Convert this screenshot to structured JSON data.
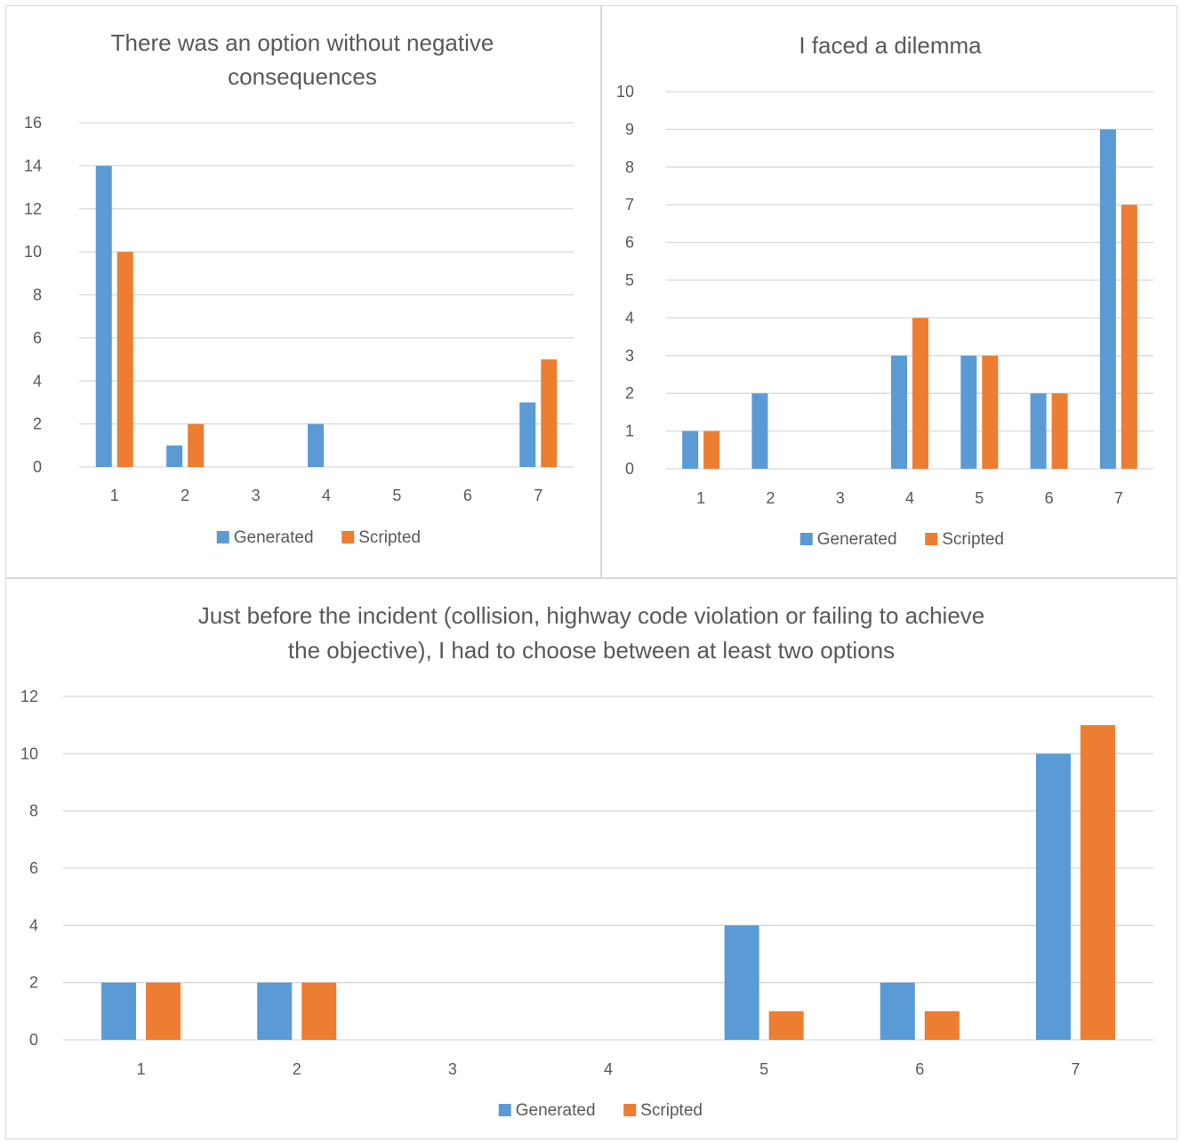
{
  "colors": {
    "generated": "#5b9bd5",
    "scripted": "#ed7d31",
    "grid": "#d9d9d9",
    "text": "#595959"
  },
  "chart_data": [
    {
      "type": "bar",
      "title": "There was an option without negative consequences",
      "title_lines": [
        "There was an option without negative",
        "consequences"
      ],
      "categories": [
        "1",
        "2",
        "3",
        "4",
        "5",
        "6",
        "7"
      ],
      "series": [
        {
          "name": "Generated",
          "values": [
            14,
            1,
            0,
            2,
            0,
            0,
            3
          ]
        },
        {
          "name": "Scripted",
          "values": [
            10,
            2,
            0,
            0,
            0,
            0,
            5
          ]
        }
      ],
      "ylim": [
        0,
        16
      ],
      "yticks": [
        "0",
        "2",
        "4",
        "6",
        "8",
        "10",
        "12",
        "14",
        "16"
      ],
      "grid": true,
      "legend": "bottom"
    },
    {
      "type": "bar",
      "title": "I faced a dilemma",
      "title_lines": [
        "I faced a dilemma"
      ],
      "categories": [
        "1",
        "2",
        "3",
        "4",
        "5",
        "6",
        "7"
      ],
      "series": [
        {
          "name": "Generated",
          "values": [
            1,
            2,
            0,
            3,
            3,
            2,
            9
          ]
        },
        {
          "name": "Scripted",
          "values": [
            1,
            0,
            0,
            4,
            3,
            2,
            7
          ]
        }
      ],
      "ylim": [
        0,
        10
      ],
      "yticks": [
        "0",
        "1",
        "2",
        "3",
        "4",
        "5",
        "6",
        "7",
        "8",
        "9",
        "10"
      ],
      "grid": true,
      "legend": "bottom"
    },
    {
      "type": "bar",
      "title": "Just before the incident (collision, highway code violation or failing to achieve the objective), I had to choose between at least two options",
      "title_lines": [
        "Just before the incident (collision, highway code violation or failing to achieve",
        "the objective), I had to choose between at least two options"
      ],
      "categories": [
        "1",
        "2",
        "3",
        "4",
        "5",
        "6",
        "7"
      ],
      "series": [
        {
          "name": "Generated",
          "values": [
            2,
            2,
            0,
            0,
            4,
            2,
            10
          ]
        },
        {
          "name": "Scripted",
          "values": [
            2,
            2,
            0,
            0,
            1,
            1,
            11
          ]
        }
      ],
      "ylim": [
        0,
        12
      ],
      "yticks": [
        "0",
        "2",
        "4",
        "6",
        "8",
        "10",
        "12"
      ],
      "grid": true,
      "legend": "bottom"
    }
  ]
}
